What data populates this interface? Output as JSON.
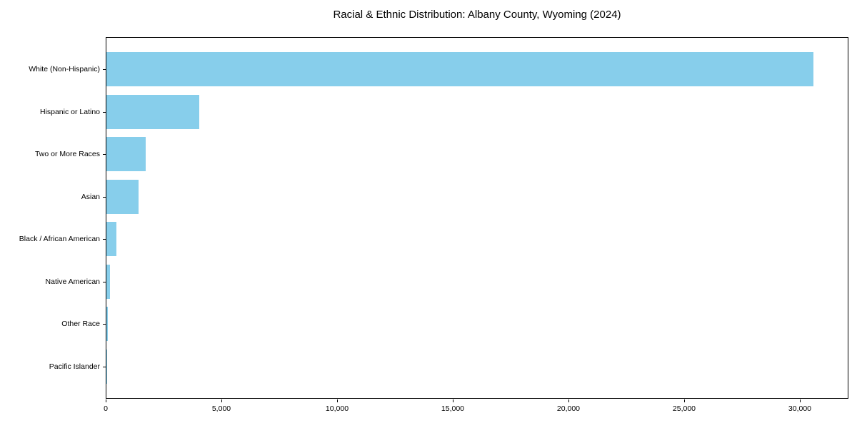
{
  "title": "Racial & Ethnic Distribution: Albany County, Wyoming (2024)",
  "colors": {
    "bar": "#87CEEB",
    "axis": "#000000",
    "text": "#000000",
    "background": "#ffffff"
  },
  "chart_data": {
    "type": "bar",
    "orientation": "horizontal",
    "title": "Racial & Ethnic Distribution: Albany County, Wyoming (2024)",
    "xlabel": "",
    "ylabel": "",
    "categories": [
      "White (Non-Hispanic)",
      "Hispanic or Latino",
      "Two or More Races",
      "Asian",
      "Black / African American",
      "Native American",
      "Other Race",
      "Pacific Islander"
    ],
    "values": [
      30558,
      4022,
      1710,
      1375,
      432,
      152,
      49,
      25
    ],
    "bar_color": "#87CEEB",
    "xlim": [
      0,
      32100
    ],
    "x_ticks": [
      0,
      5000,
      10000,
      15000,
      20000,
      25000,
      30000
    ],
    "x_tick_labels": [
      "0",
      "5,000",
      "10,000",
      "15,000",
      "20,000",
      "25,000",
      "30,000"
    ],
    "grid": false,
    "legend_position": "none"
  }
}
